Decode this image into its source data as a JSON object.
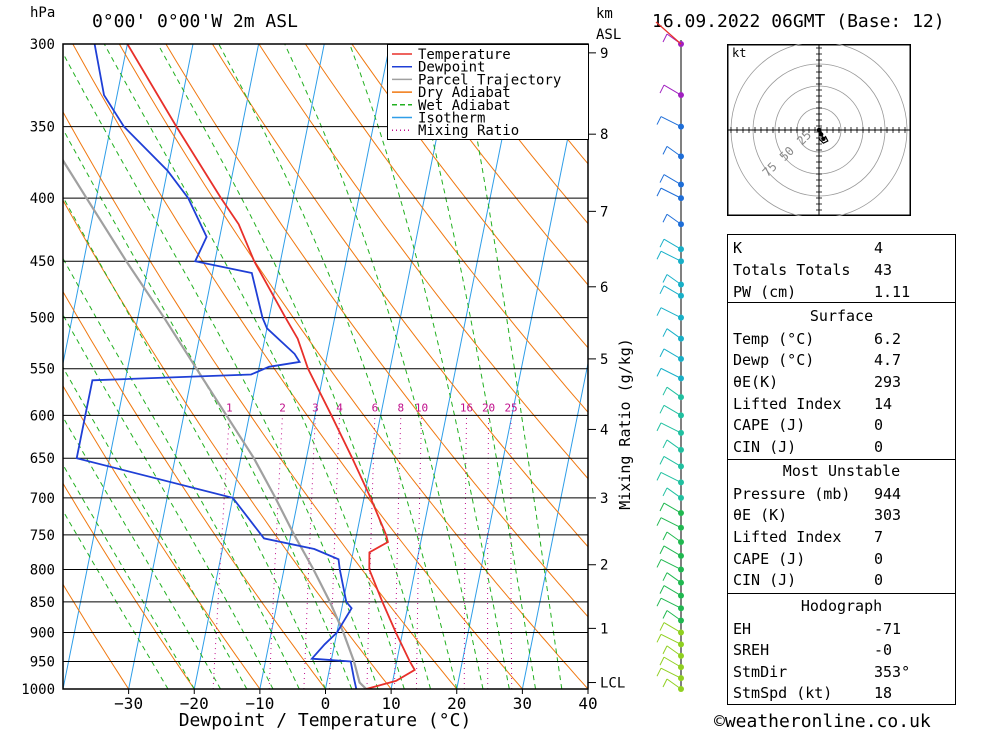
{
  "header": {
    "unit_left": "hPa",
    "location": "0°00' 0°00'W 2m ASL",
    "km_label": "km",
    "asl_label": "ASL",
    "datetime": "16.09.2022 06GMT (Base: 12)"
  },
  "footer": {
    "copyright": "©weatheronline.co.uk"
  },
  "chart_data": [
    {
      "type": "line",
      "name": "skew-t",
      "xlabel": "Dewpoint / Temperature (°C)",
      "ylabel": "",
      "mixing_ratio_axis_label": "Mixing Ratio (g/kg)",
      "xlim": [
        -40,
        40
      ],
      "ylim_hPa": [
        1000,
        300
      ],
      "x_ticks": [
        "-30",
        "-20",
        "-10",
        "0",
        "10",
        "20",
        "30",
        "40"
      ],
      "pressure_ticks": [
        "300",
        "350",
        "400",
        "450",
        "500",
        "550",
        "600",
        "650",
        "700",
        "750",
        "800",
        "850",
        "900",
        "950",
        "1000"
      ],
      "km_ticks": [
        {
          "p": 305,
          "label": "9"
        },
        {
          "p": 355,
          "label": "8"
        },
        {
          "p": 410,
          "label": "7"
        },
        {
          "p": 472,
          "label": "6"
        },
        {
          "p": 540,
          "label": "5"
        },
        {
          "p": 616,
          "label": "4"
        },
        {
          "p": 700,
          "label": "3"
        },
        {
          "p": 793,
          "label": "2"
        },
        {
          "p": 893,
          "label": "1"
        },
        {
          "p": 988,
          "label": "LCL"
        }
      ],
      "mixing_ratio_labels": [
        "1",
        "2",
        "3",
        "4",
        "6",
        "8",
        "10",
        "16",
        "20",
        "25"
      ],
      "mixing_ratio_values": [
        1,
        2,
        3,
        4,
        6,
        8,
        10,
        16,
        20,
        25
      ],
      "legend": [
        "Temperature",
        "Dewpoint",
        "Parcel Trajectory",
        "Dry Adiabat",
        "Wet Adiabat",
        "Isotherm",
        "Mixing Ratio"
      ],
      "colors": {
        "temperature": "#e8302a",
        "dewpoint": "#1f3fd6",
        "parcel": "#a0a0a0",
        "dry_adiabat": "#f07810",
        "wet_adiabat": "#22b020",
        "isotherm": "#2f9ee8",
        "mixing_ratio": "#c0108c"
      },
      "series": [
        {
          "name": "Temperature",
          "points": [
            [
              1000,
              6.2
            ],
            [
              985,
              10.5
            ],
            [
              965,
              13.0
            ],
            [
              950,
              12.0
            ],
            [
              900,
              9.0
            ],
            [
              850,
              6.0
            ],
            [
              800,
              3.0
            ],
            [
              775,
              2.5
            ],
            [
              760,
              5.0
            ],
            [
              750,
              4.5
            ],
            [
              700,
              1.0
            ],
            [
              650,
              -3.0
            ],
            [
              600,
              -7.5
            ],
            [
              550,
              -12.5
            ],
            [
              520,
              -15.0
            ],
            [
              500,
              -17.5
            ],
            [
              450,
              -24.0
            ],
            [
              420,
              -27.5
            ],
            [
              400,
              -31.0
            ],
            [
              350,
              -40.0
            ],
            [
              300,
              -50.0
            ]
          ]
        },
        {
          "name": "Dewpoint",
          "points": [
            [
              1000,
              4.7
            ],
            [
              980,
              4.0
            ],
            [
              950,
              3.0
            ],
            [
              945,
              -3.0
            ],
            [
              920,
              -1.5
            ],
            [
              900,
              0.0
            ],
            [
              860,
              1.5
            ],
            [
              850,
              0.5
            ],
            [
              800,
              -1.5
            ],
            [
              785,
              -2.0
            ],
            [
              770,
              -6.0
            ],
            [
              755,
              -14.0
            ],
            [
              700,
              -20.0
            ],
            [
              650,
              -45.0
            ],
            [
              600,
              -45.0
            ],
            [
              562,
              -45.0
            ],
            [
              556,
              -21.0
            ],
            [
              548,
              -18.5
            ],
            [
              543,
              -14.0
            ],
            [
              535,
              -15.0
            ],
            [
              510,
              -20.0
            ],
            [
              500,
              -21.0
            ],
            [
              460,
              -24.0
            ],
            [
              450,
              -33.0
            ],
            [
              430,
              -32.0
            ],
            [
              400,
              -36.0
            ],
            [
              380,
              -40.0
            ],
            [
              350,
              -48.0
            ],
            [
              330,
              -52.0
            ],
            [
              300,
              -55.0
            ]
          ]
        },
        {
          "name": "Parcel Trajectory",
          "points": [
            [
              1000,
              6.2
            ],
            [
              988,
              5.0
            ],
            [
              950,
              3.5
            ],
            [
              900,
              1.0
            ],
            [
              850,
              -2.0
            ],
            [
              800,
              -5.5
            ],
            [
              750,
              -9.5
            ],
            [
              700,
              -13.5
            ],
            [
              650,
              -18.0
            ],
            [
              600,
              -23.5
            ],
            [
              550,
              -29.5
            ],
            [
              500,
              -36.0
            ],
            [
              450,
              -43.5
            ],
            [
              400,
              -51.5
            ],
            [
              350,
              -60.5
            ],
            [
              300,
              -71.0
            ]
          ]
        }
      ]
    },
    {
      "type": "scatter",
      "name": "hodograph",
      "unit_label": "kt",
      "ring_labels": [
        "25",
        "50",
        "75"
      ],
      "points": [
        [
          0,
          0
        ],
        [
          1,
          -2
        ],
        [
          2,
          -4
        ],
        [
          3,
          -3
        ],
        [
          4,
          -5
        ],
        [
          2,
          -6
        ],
        [
          0,
          -4
        ]
      ]
    }
  ],
  "wind_profile_pressures": [
    300,
    330,
    350,
    370,
    390,
    400,
    420,
    440,
    450,
    470,
    480,
    500,
    520,
    540,
    560,
    580,
    600,
    620,
    640,
    660,
    680,
    700,
    720,
    740,
    760,
    780,
    800,
    820,
    840,
    860,
    880,
    900,
    920,
    940,
    960,
    980,
    1000
  ],
  "indices": {
    "rows": [
      {
        "key": "K",
        "value": "4"
      },
      {
        "key": "Totals Totals",
        "value": "43"
      },
      {
        "key": "PW (cm)",
        "value": "1.11"
      }
    ]
  },
  "surface": {
    "title": "Surface",
    "rows": [
      {
        "key": "Temp (°C)",
        "value": "6.2"
      },
      {
        "key": "Dewp (°C)",
        "value": "4.7"
      },
      {
        "key": "θE(K)",
        "value": "293"
      },
      {
        "key": "Lifted Index",
        "value": "14"
      },
      {
        "key": "CAPE (J)",
        "value": "0"
      },
      {
        "key": "CIN (J)",
        "value": "0"
      }
    ]
  },
  "most_unstable": {
    "title": "Most Unstable",
    "rows": [
      {
        "key": "Pressure (mb)",
        "value": "944"
      },
      {
        "key": "θE (K)",
        "value": "303"
      },
      {
        "key": "Lifted Index",
        "value": "7"
      },
      {
        "key": "CAPE (J)",
        "value": "0"
      },
      {
        "key": "CIN (J)",
        "value": "0"
      }
    ]
  },
  "hodograph_stats": {
    "title": "Hodograph",
    "rows": [
      {
        "key": "EH",
        "value": "-71"
      },
      {
        "key": "SREH",
        "value": "-0"
      },
      {
        "key": "StmDir",
        "value": "353°"
      },
      {
        "key": "StmSpd (kt)",
        "value": "18"
      }
    ]
  }
}
